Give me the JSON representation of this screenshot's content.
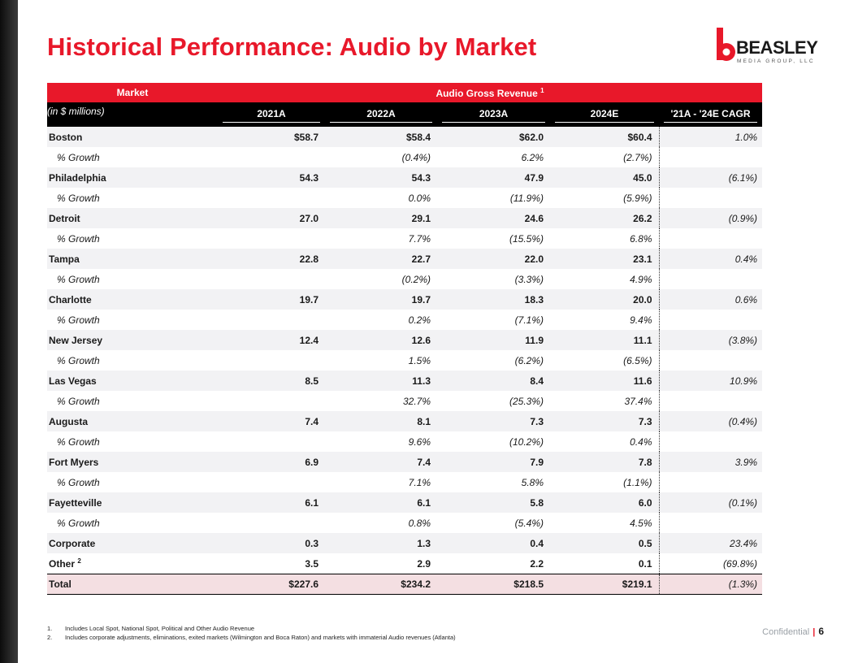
{
  "slide": {
    "title": "Historical Performance: Audio by Market",
    "logo": {
      "word": "BEASLEY",
      "sub": "MEDIA GROUP, LLC"
    },
    "footer": {
      "confidential": "Confidential",
      "separator": "|",
      "page": "6"
    }
  },
  "table": {
    "header": {
      "market": "Market",
      "group": "Audio Gross Revenue",
      "group_sup": "1",
      "units": "(in $ millions)",
      "cols": [
        "2021A",
        "2022A",
        "2023A",
        "2024E",
        "'21A - '24E CAGR"
      ]
    },
    "markets": [
      {
        "name": "Boston",
        "values": [
          "$58.7",
          "$58.4",
          "$62.0",
          "$60.4"
        ],
        "cagr": "1.0%",
        "growth": [
          "(0.4%)",
          "6.2%",
          "(2.7%)"
        ]
      },
      {
        "name": "Philadelphia",
        "values": [
          "54.3",
          "54.3",
          "47.9",
          "45.0"
        ],
        "cagr": "(6.1%)",
        "growth": [
          "0.0%",
          "(11.9%)",
          "(5.9%)"
        ]
      },
      {
        "name": "Detroit",
        "values": [
          "27.0",
          "29.1",
          "24.6",
          "26.2"
        ],
        "cagr": "(0.9%)",
        "growth": [
          "7.7%",
          "(15.5%)",
          "6.8%"
        ]
      },
      {
        "name": "Tampa",
        "values": [
          "22.8",
          "22.7",
          "22.0",
          "23.1"
        ],
        "cagr": "0.4%",
        "growth": [
          "(0.2%)",
          "(3.3%)",
          "4.9%"
        ]
      },
      {
        "name": "Charlotte",
        "values": [
          "19.7",
          "19.7",
          "18.3",
          "20.0"
        ],
        "cagr": "0.6%",
        "growth": [
          "0.2%",
          "(7.1%)",
          "9.4%"
        ]
      },
      {
        "name": "New Jersey",
        "values": [
          "12.4",
          "12.6",
          "11.9",
          "11.1"
        ],
        "cagr": "(3.8%)",
        "growth": [
          "1.5%",
          "(6.2%)",
          "(6.5%)"
        ]
      },
      {
        "name": "Las Vegas",
        "values": [
          "8.5",
          "11.3",
          "8.4",
          "11.6"
        ],
        "cagr": "10.9%",
        "growth": [
          "32.7%",
          "(25.3%)",
          "37.4%"
        ]
      },
      {
        "name": "Augusta",
        "values": [
          "7.4",
          "8.1",
          "7.3",
          "7.3"
        ],
        "cagr": "(0.4%)",
        "growth": [
          "9.6%",
          "(10.2%)",
          "0.4%"
        ]
      },
      {
        "name": "Fort Myers",
        "values": [
          "6.9",
          "7.4",
          "7.9",
          "7.8"
        ],
        "cagr": "3.9%",
        "growth": [
          "7.1%",
          "5.8%",
          "(1.1%)"
        ]
      },
      {
        "name": "Fayetteville",
        "values": [
          "6.1",
          "6.1",
          "5.8",
          "6.0"
        ],
        "cagr": "(0.1%)",
        "growth": [
          "0.8%",
          "(5.4%)",
          "4.5%"
        ]
      }
    ],
    "growth_label": "% Growth",
    "corporate": {
      "name": "Corporate",
      "values": [
        "0.3",
        "1.3",
        "0.4",
        "0.5"
      ],
      "cagr": "23.4%"
    },
    "other": {
      "name": "Other",
      "sup": "2",
      "values": [
        "3.5",
        "2.9",
        "2.2",
        "0.1"
      ],
      "cagr": "(69.8%)"
    },
    "total": {
      "name": "Total",
      "values": [
        "$227.6",
        "$234.2",
        "$218.5",
        "$219.1"
      ],
      "cagr": "(1.3%)"
    }
  },
  "notes": [
    {
      "num": "1.",
      "text": "Includes Local Spot, National Spot, Political and Other Audio Revenue"
    },
    {
      "num": "2.",
      "text": "Includes corporate adjustments, eliminations, exited markets (Wilmington and Boca Raton) and markets with immaterial Audio revenues (Atlanta)"
    }
  ],
  "colors": {
    "accent": "#e8182a",
    "header_bg": "#000000",
    "shade": "#f2f2f4",
    "total_bg": "#f4dfe2"
  }
}
